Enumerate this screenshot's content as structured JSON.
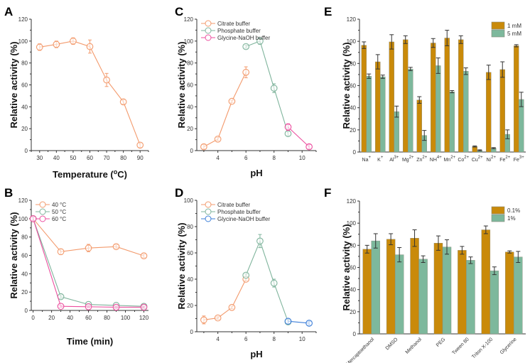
{
  "colors": {
    "orange": "#f39a6c",
    "green": "#7fb49c",
    "pink": "#ec4f9f",
    "blue": "#3d7fd9",
    "bar1": "#c98a0a",
    "bar2": "#7db89c",
    "axis": "#333333"
  },
  "chart_data": [
    {
      "panel": "A",
      "type": "line",
      "xlabel": "Temperature (oC)",
      "ylabel": "Relative activity (%)",
      "xlim": [
        25,
        95
      ],
      "ylim": [
        0,
        120
      ],
      "xticks": [
        30,
        40,
        50,
        60,
        70,
        80,
        90
      ],
      "yticks": [
        0,
        20,
        40,
        60,
        80,
        100,
        120
      ],
      "series": [
        {
          "name": "Temperature",
          "color": "orange",
          "x": [
            30,
            40,
            50,
            60,
            70,
            80,
            90
          ],
          "y": [
            94.5,
            97,
            100,
            95,
            64.5,
            44.5,
            5
          ],
          "err": [
            3,
            3,
            3,
            6,
            6,
            2,
            2
          ]
        }
      ]
    },
    {
      "panel": "B",
      "type": "line",
      "xlabel": "Time (min)",
      "ylabel": "Relative activity (%)",
      "xlim": [
        -2,
        125
      ],
      "ylim": [
        0,
        120
      ],
      "xticks": [
        0,
        20,
        40,
        60,
        80,
        100,
        120
      ],
      "yticks": [
        0,
        20,
        40,
        60,
        80,
        100,
        120
      ],
      "legend": "top-left",
      "series": [
        {
          "name": "40 °C",
          "color": "orange",
          "x": [
            0,
            30,
            60,
            90,
            120
          ],
          "y": [
            100,
            64,
            68,
            69.5,
            59.5
          ],
          "err": [
            2,
            3,
            4,
            2,
            2
          ]
        },
        {
          "name": "50 °C",
          "color": "green",
          "x": [
            0,
            30,
            60,
            90,
            120
          ],
          "y": [
            100,
            15,
            6.5,
            5.5,
            4.5
          ],
          "err": [
            2,
            2,
            1,
            1,
            1
          ]
        },
        {
          "name": "60 °C",
          "color": "pink",
          "x": [
            0,
            30,
            60,
            90,
            120
          ],
          "y": [
            100,
            4.5,
            4,
            3.5,
            3.5
          ],
          "err": [
            2,
            1,
            1,
            1,
            1
          ]
        }
      ]
    },
    {
      "panel": "C",
      "type": "line",
      "xlabel": "pH",
      "ylabel": "Relative activity (%)",
      "xlim": [
        2.5,
        11
      ],
      "ylim": [
        0,
        120
      ],
      "xticks": [
        4,
        6,
        8,
        10
      ],
      "yticks": [
        0,
        20,
        40,
        60,
        80,
        100,
        120
      ],
      "legend": "top-left",
      "series": [
        {
          "name": "Citrate buffer",
          "color": "orange",
          "x": [
            3,
            4,
            5,
            6
          ],
          "y": [
            3.5,
            10.5,
            45,
            71.5
          ],
          "err": [
            2,
            1.5,
            1,
            5
          ]
        },
        {
          "name": "Phosphate buffer",
          "color": "green",
          "x": [
            6,
            7,
            8,
            9
          ],
          "y": [
            95,
            100,
            57,
            15.5
          ],
          "err": [
            1.5,
            3,
            4,
            2
          ]
        },
        {
          "name": "Glycine-NaOH buffer",
          "color": "pink",
          "x": [
            9,
            10.5
          ],
          "y": [
            21.5,
            3.5
          ],
          "err": [
            3,
            2
          ]
        }
      ]
    },
    {
      "panel": "D",
      "type": "line",
      "xlabel": "pH",
      "ylabel": "Relative activity (%)",
      "xlim": [
        2.5,
        11
      ],
      "ylim": [
        0,
        100
      ],
      "xticks": [
        4,
        6,
        8,
        10
      ],
      "yticks": [
        0,
        20,
        40,
        60,
        80,
        100
      ],
      "legend": "top-left",
      "series": [
        {
          "name": "Citrate buffer",
          "color": "orange",
          "x": [
            3,
            4,
            5,
            6
          ],
          "y": [
            9,
            10.5,
            18.5,
            40
          ],
          "err": [
            3,
            1,
            1,
            1
          ]
        },
        {
          "name": "Phosphate buffer",
          "color": "green",
          "x": [
            6,
            7,
            8,
            9
          ],
          "y": [
            43,
            69,
            37,
            7.5
          ],
          "err": [
            1,
            5,
            3,
            1.5
          ]
        },
        {
          "name": "Glycine-NaOH buffer",
          "color": "blue",
          "x": [
            9,
            10.5
          ],
          "y": [
            8,
            6.5
          ],
          "err": [
            2,
            1.5
          ]
        }
      ]
    },
    {
      "panel": "E",
      "type": "bar",
      "xlabel": "",
      "ylabel": "Relative activity (%)",
      "ylim": [
        0,
        120
      ],
      "yticks": [
        0,
        20,
        40,
        60,
        80,
        100,
        120
      ],
      "legend": "top-right",
      "categories": [
        {
          "base": "Na",
          "sup": "+"
        },
        {
          "base": "K",
          "sup": "+"
        },
        {
          "base": "Al",
          "sup": "3+"
        },
        {
          "base": "Mg",
          "sup": "2+"
        },
        {
          "base": "Zn",
          "sup": "2+"
        },
        {
          "base": "NH",
          "sup": "4+"
        },
        {
          "base": "Mn",
          "sup": "2+"
        },
        {
          "base": "Co",
          "sup": "2+"
        },
        {
          "base": "Cu",
          "sup": "2+"
        },
        {
          "base": "Ni",
          "sup": "2+"
        },
        {
          "base": "Fe",
          "sup": "2+"
        },
        {
          "base": "Fe",
          "sup": "3+"
        }
      ],
      "series": [
        {
          "name": "1 mM",
          "color": "bar1",
          "values": [
            96.5,
            81.5,
            99.5,
            101.5,
            47,
            98.5,
            103,
            101.5,
            5,
            72,
            74.5,
            96
          ],
          "err": [
            3,
            6.5,
            6.5,
            3.5,
            3,
            4,
            7,
            3.5,
            0.5,
            6.5,
            7,
            1
          ]
        },
        {
          "name": "5 mM",
          "color": "bar2",
          "values": [
            68.5,
            68,
            36.5,
            75,
            15,
            78,
            54.5,
            73,
            1.5,
            3.5,
            16,
            47.5
          ],
          "err": [
            2,
            1.5,
            5,
            1.5,
            4.5,
            7,
            1,
            3,
            0.5,
            0.5,
            4,
            6.5
          ]
        }
      ]
    },
    {
      "panel": "F",
      "type": "bar",
      "xlabel": "",
      "ylabel": "Relative activity (%)",
      "ylim": [
        0,
        120
      ],
      "yticks": [
        0,
        20,
        40,
        60,
        80,
        100,
        120
      ],
      "legend": "top-right",
      "categories": [
        {
          "base": "Mercaptoethanol",
          "sup": ""
        },
        {
          "base": "DMSO",
          "sup": ""
        },
        {
          "base": "Methanol",
          "sup": ""
        },
        {
          "base": "PEG",
          "sup": ""
        },
        {
          "base": "Tween 80",
          "sup": ""
        },
        {
          "base": "Triton X-100",
          "sup": ""
        },
        {
          "base": "Glycerine",
          "sup": ""
        }
      ],
      "series": [
        {
          "name": "0.1%",
          "color": "bar1",
          "values": [
            76.5,
            85.5,
            86.5,
            82,
            75.5,
            94,
            74
          ],
          "err": [
            3.5,
            5,
            7.5,
            6.5,
            3.5,
            3.5,
            1
          ]
        },
        {
          "name": "1%",
          "color": "bar2",
          "values": [
            84,
            71.5,
            67.5,
            78.5,
            66.5,
            57,
            69.5
          ],
          "err": [
            6.5,
            6.5,
            3,
            6.5,
            3,
            3.5,
            5
          ]
        }
      ]
    }
  ]
}
